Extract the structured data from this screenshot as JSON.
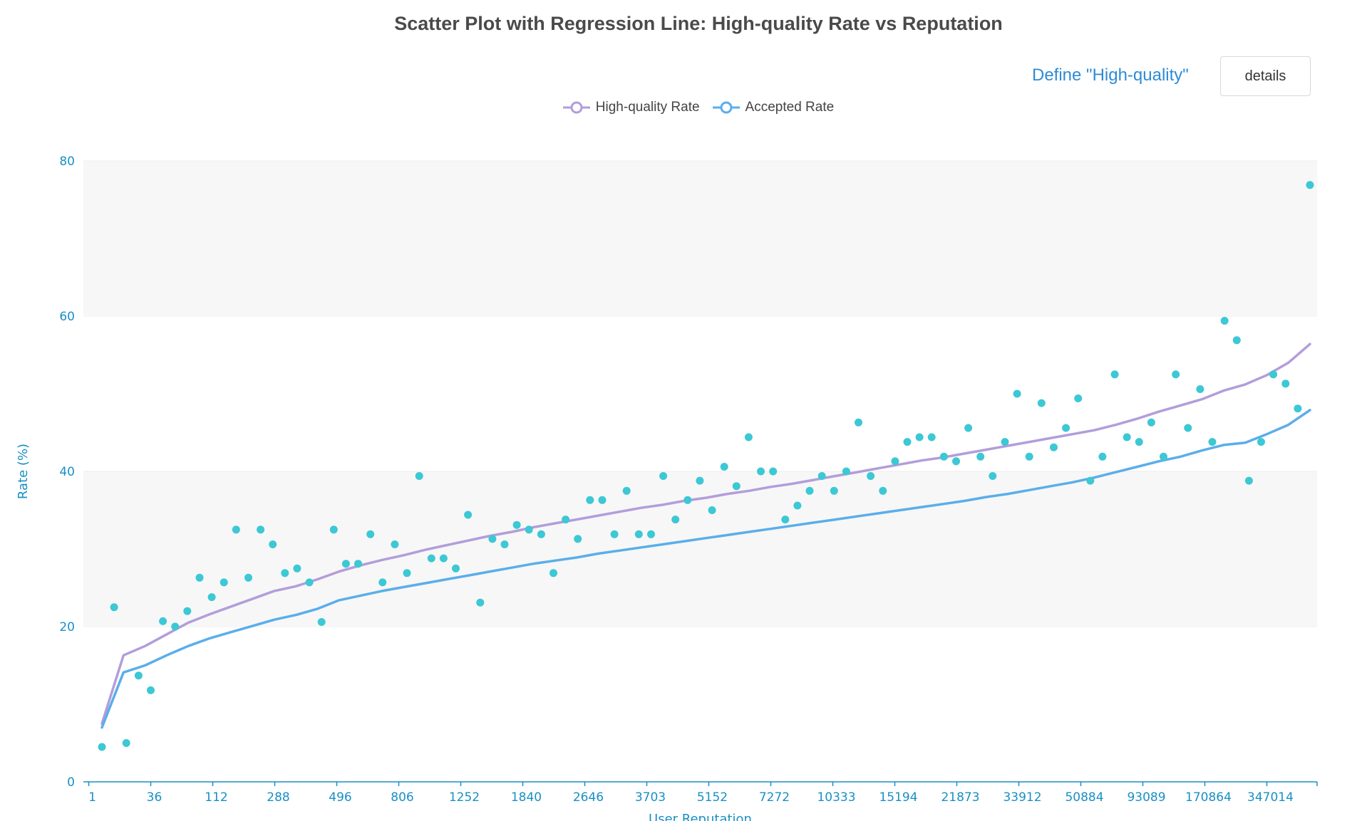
{
  "header": {
    "define_link": "Define \"High-quality\"",
    "details_label": "details"
  },
  "chart_data": {
    "type": "scatter",
    "title": "Scatter Plot with Regression Line: High-quality Rate vs Reputation",
    "xlabel": "User Reputation",
    "ylabel": "Rate (%)",
    "ylim": [
      0,
      80
    ],
    "yticks": [
      0,
      20,
      40,
      60,
      80
    ],
    "x_scale": "log",
    "xticks": [
      "1",
      "36",
      "112",
      "288",
      "496",
      "806",
      "1252",
      "1840",
      "2646",
      "3703",
      "5152",
      "7272",
      "10333",
      "15194",
      "21873",
      "33912",
      "50884",
      "93089",
      "170864",
      "347014"
    ],
    "grid": "alternating horizontal bands",
    "legend": {
      "position": "top-center",
      "entries": [
        "High-quality Rate",
        "Accepted Rate"
      ]
    },
    "colors": {
      "high_quality": "#b39ddb",
      "accepted": "#5aaeea",
      "points": "#3cc8d4"
    },
    "scatter_points": [
      4.5,
      22.5,
      5,
      13.7,
      11.8,
      20.7,
      20,
      22,
      26.3,
      23.8,
      25.7,
      32.5,
      26.3,
      32.5,
      30.6,
      26.9,
      27.5,
      25.7,
      20.6,
      32.5,
      28.1,
      28.1,
      31.9,
      25.7,
      30.6,
      26.9,
      39.4,
      28.8,
      28.8,
      27.5,
      34.4,
      23.1,
      31.3,
      30.6,
      33.1,
      32.5,
      31.9,
      26.9,
      33.8,
      31.3,
      36.3,
      36.3,
      31.9,
      37.5,
      31.9,
      31.9,
      39.4,
      33.8,
      36.3,
      38.8,
      35,
      40.6,
      38.1,
      44.4,
      40,
      40,
      33.8,
      35.6,
      37.5,
      39.4,
      37.5,
      40,
      46.3,
      39.4,
      37.5,
      41.3,
      43.8,
      44.4,
      44.4,
      41.9,
      41.3,
      45.6,
      41.9,
      39.4,
      43.8,
      50,
      41.9,
      48.8,
      43.1,
      45.6,
      49.4,
      38.8,
      41.9,
      52.5,
      44.4,
      43.8,
      46.3,
      41.9,
      52.5,
      45.6,
      50.6,
      43.8,
      59.4,
      56.9,
      38.8,
      43.8,
      52.5,
      51.3,
      48.1,
      76.9
    ],
    "series": [
      {
        "name": "High-quality Rate",
        "values": [
          7.5,
          16.3,
          17.5,
          19,
          20.5,
          21.6,
          22.6,
          23.6,
          24.6,
          25.2,
          26.1,
          27.1,
          27.9,
          28.6,
          29.2,
          29.9,
          30.5,
          31.1,
          31.7,
          32.2,
          32.8,
          33.3,
          33.8,
          34.3,
          34.8,
          35.3,
          35.7,
          36.2,
          36.6,
          37.1,
          37.5,
          38,
          38.4,
          38.9,
          39.4,
          39.9,
          40.4,
          40.9,
          41.4,
          41.8,
          42.3,
          42.8,
          43.3,
          43.8,
          44.3,
          44.8,
          45.3,
          46,
          46.8,
          47.7,
          48.5,
          49.3,
          50.4,
          51.2,
          52.4,
          54,
          56.4
        ]
      },
      {
        "name": "Accepted Rate",
        "values": [
          7,
          14.1,
          15,
          16.3,
          17.5,
          18.5,
          19.3,
          20.1,
          20.9,
          21.5,
          22.3,
          23.4,
          24,
          24.6,
          25.1,
          25.6,
          26.1,
          26.6,
          27.1,
          27.6,
          28.1,
          28.5,
          28.9,
          29.4,
          29.8,
          30.2,
          30.6,
          31,
          31.4,
          31.8,
          32.2,
          32.6,
          33,
          33.4,
          33.8,
          34.2,
          34.6,
          35,
          35.4,
          35.8,
          36.2,
          36.7,
          37.1,
          37.6,
          38.1,
          38.6,
          39.2,
          39.9,
          40.6,
          41.3,
          41.9,
          42.7,
          43.4,
          43.7,
          44.8,
          46,
          47.9
        ]
      }
    ]
  }
}
